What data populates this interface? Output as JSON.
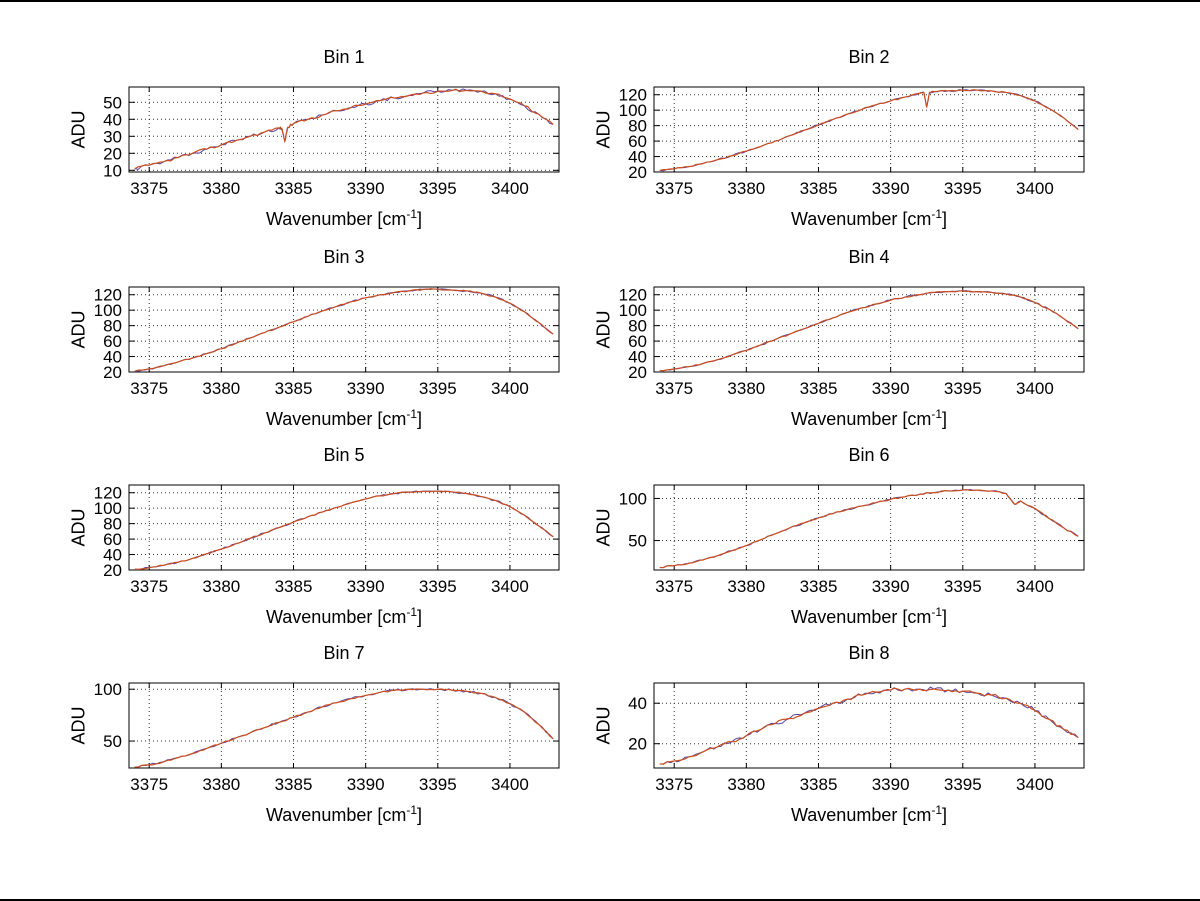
{
  "labels": {
    "xlabel_main": "Wavenumber [cm",
    "xlabel_sup": "-1",
    "xlabel_close": "]",
    "xlabel_full": "Wavenumber [cm^-1]",
    "ylabel": "ADU"
  },
  "chart_defaults": {
    "xlim": [
      3373.6,
      3403.4
    ],
    "xticks": [
      3375,
      3380,
      3385,
      3390,
      3395,
      3400
    ],
    "line_color": "#cc4d1a",
    "under_color": "#5544aa",
    "noise_adu": 0.8,
    "grid_style": "dotted",
    "grid_color": "#333333",
    "axis_color": "#000000",
    "legend": "none"
  },
  "chart_data": [
    {
      "type": "line",
      "title": "Bin 1",
      "ylabel": "ADU",
      "ylim": [
        9,
        59
      ],
      "yticks": [
        10,
        20,
        30,
        40,
        50
      ],
      "x": [
        3374,
        3375,
        3376,
        3377,
        3378,
        3379,
        3380,
        3381,
        3382,
        3383,
        3384,
        3384.2,
        3384.4,
        3384.6,
        3385,
        3386,
        3387,
        3388,
        3389,
        3390,
        3391,
        3392,
        3393,
        3394,
        3395,
        3396,
        3397,
        3398,
        3399,
        3400,
        3401,
        3402,
        3403
      ],
      "y": [
        11,
        13,
        15,
        17.5,
        20,
        22.5,
        25,
        27.5,
        30,
        32.5,
        35,
        34.5,
        27,
        35.3,
        37.5,
        40,
        42.5,
        45,
        47,
        49,
        51,
        52.5,
        54,
        55.5,
        56.5,
        57,
        57,
        56.5,
        55,
        52,
        48,
        43,
        37
      ]
    },
    {
      "type": "line",
      "title": "Bin 2",
      "ylabel": "ADU",
      "ylim": [
        20,
        130
      ],
      "yticks": [
        20,
        40,
        60,
        80,
        100,
        120
      ],
      "x": [
        3374,
        3375,
        3376,
        3377,
        3378,
        3379,
        3380,
        3381,
        3382,
        3383,
        3384,
        3385,
        3386,
        3387,
        3388,
        3389,
        3390,
        3391,
        3392,
        3392.3,
        3392.5,
        3392.7,
        3393,
        3394,
        3395,
        3396,
        3397,
        3398,
        3399,
        3400,
        3401,
        3402,
        3403
      ],
      "y": [
        22,
        24,
        27,
        31,
        36,
        41,
        47,
        53,
        60,
        67,
        74,
        81,
        88,
        95,
        101,
        107,
        112,
        117,
        122,
        123,
        104,
        123,
        124,
        125,
        126,
        126,
        125,
        123,
        119,
        112,
        102,
        90,
        75
      ]
    },
    {
      "type": "line",
      "title": "Bin 3",
      "ylabel": "ADU",
      "ylim": [
        20,
        130
      ],
      "yticks": [
        20,
        40,
        60,
        80,
        100,
        120
      ],
      "x": [
        3374,
        3375,
        3376,
        3377,
        3378,
        3379,
        3380,
        3381,
        3382,
        3383,
        3384,
        3385,
        3386,
        3387,
        3388,
        3389,
        3390,
        3391,
        3392,
        3393,
        3394,
        3395,
        3396,
        3397,
        3398,
        3399,
        3400,
        3401,
        3402,
        3403
      ],
      "y": [
        21,
        24,
        28,
        33,
        38,
        44,
        50,
        57,
        64,
        71,
        78,
        85,
        92,
        99,
        105,
        111,
        116,
        120,
        123,
        125,
        127,
        127,
        126,
        125,
        122,
        117,
        109,
        98,
        84,
        69
      ]
    },
    {
      "type": "line",
      "title": "Bin 4",
      "ylabel": "ADU",
      "ylim": [
        20,
        130
      ],
      "yticks": [
        20,
        40,
        60,
        80,
        100,
        120
      ],
      "x": [
        3374,
        3375,
        3376,
        3377,
        3378,
        3379,
        3380,
        3381,
        3382,
        3383,
        3384,
        3385,
        3386,
        3387,
        3388,
        3389,
        3390,
        3391,
        3392,
        3393,
        3394,
        3395,
        3396,
        3397,
        3398,
        3399,
        3400,
        3401,
        3402,
        3403
      ],
      "y": [
        22,
        24,
        27,
        31,
        36,
        42,
        48,
        55,
        62,
        69,
        76,
        83,
        90,
        97,
        103,
        108,
        113,
        117,
        120,
        123,
        124,
        125,
        124,
        123,
        121,
        117,
        110,
        101,
        89,
        76
      ]
    },
    {
      "type": "line",
      "title": "Bin 5",
      "ylabel": "ADU",
      "ylim": [
        20,
        130
      ],
      "yticks": [
        20,
        40,
        60,
        80,
        100,
        120
      ],
      "x": [
        3374,
        3375,
        3376,
        3377,
        3378,
        3379,
        3380,
        3381,
        3382,
        3383,
        3384,
        3385,
        3386,
        3387,
        3388,
        3389,
        3390,
        3391,
        3392,
        3393,
        3394,
        3395,
        3396,
        3397,
        3398,
        3399,
        3400,
        3401,
        3402,
        3403
      ],
      "y": [
        21,
        23,
        26,
        30,
        35,
        41,
        47,
        54,
        61,
        68,
        75,
        82,
        89,
        95,
        101,
        107,
        112,
        116,
        119,
        121,
        122,
        122,
        121,
        119,
        115,
        110,
        102,
        91,
        77,
        63
      ]
    },
    {
      "type": "line",
      "title": "Bin 6",
      "ylabel": "ADU",
      "ylim": [
        15,
        116
      ],
      "yticks": [
        50,
        100
      ],
      "x": [
        3374,
        3375,
        3376,
        3377,
        3378,
        3379,
        3380,
        3381,
        3382,
        3383,
        3384,
        3385,
        3386,
        3387,
        3388,
        3389,
        3390,
        3391,
        3392,
        3393,
        3394,
        3395,
        3396,
        3397,
        3398,
        3398.6,
        3399,
        3400,
        3401,
        3402,
        3403
      ],
      "y": [
        18,
        20,
        23,
        27,
        32,
        38,
        44,
        51,
        58,
        65,
        71,
        77,
        82,
        87,
        91,
        95,
        99,
        102,
        105,
        107,
        109,
        110,
        110,
        109,
        106,
        93,
        97,
        88,
        76,
        65,
        55
      ]
    },
    {
      "type": "line",
      "title": "Bin 7",
      "ylabel": "ADU",
      "ylim": [
        24,
        106
      ],
      "yticks": [
        50,
        100
      ],
      "x": [
        3374,
        3375,
        3376,
        3377,
        3378,
        3379,
        3380,
        3381,
        3382,
        3383,
        3384,
        3385,
        3386,
        3387,
        3388,
        3389,
        3390,
        3391,
        3392,
        3393,
        3394,
        3395,
        3396,
        3397,
        3398,
        3399,
        3400,
        3401,
        3402,
        3403
      ],
      "y": [
        25,
        27,
        30,
        34,
        38,
        43,
        48,
        53,
        58,
        63,
        68,
        73,
        78,
        83,
        87,
        91,
        94,
        97,
        99,
        100,
        100,
        100,
        99,
        98,
        96,
        92,
        86,
        78,
        66,
        52
      ]
    },
    {
      "type": "line",
      "title": "Bin 8",
      "ylabel": "ADU",
      "ylim": [
        8,
        50
      ],
      "yticks": [
        20,
        40
      ],
      "x": [
        3374,
        3375,
        3376,
        3377,
        3378,
        3379,
        3380,
        3381,
        3382,
        3383,
        3384,
        3385,
        3386,
        3387,
        3388,
        3389,
        3390,
        3391,
        3392,
        3393,
        3394,
        3395,
        3396,
        3397,
        3398,
        3399,
        3400,
        3401,
        3402,
        3403
      ],
      "y": [
        10,
        11.5,
        13.5,
        16,
        18.5,
        21,
        24,
        27,
        30,
        32.5,
        35,
        37.5,
        40,
        42,
        44,
        45.5,
        46.5,
        47,
        47,
        47,
        46.5,
        46,
        45,
        44,
        42.5,
        40,
        36.5,
        32,
        27,
        23
      ]
    }
  ]
}
